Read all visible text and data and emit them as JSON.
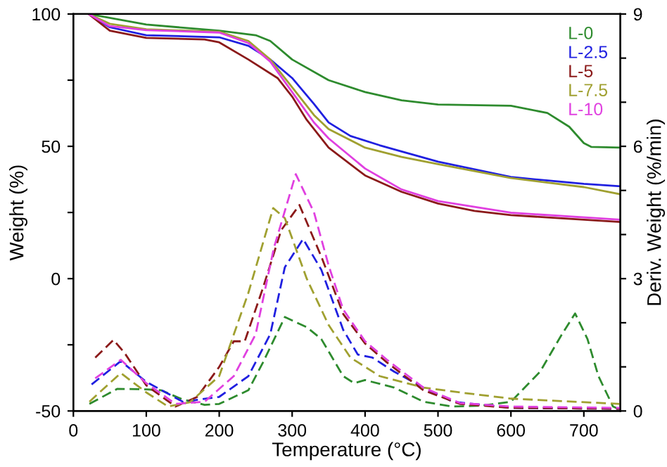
{
  "chart_data": {
    "type": "line",
    "xlabel": "Temperature (°C)",
    "ylabel": "Weight (%)",
    "y2label": "Deriv. Weight (%/min)",
    "xlim": [
      0,
      750
    ],
    "xticks": [
      0,
      100,
      200,
      300,
      400,
      500,
      600,
      700
    ],
    "ylim": [
      -50,
      100
    ],
    "yticks": [
      -50,
      {
        "value": -25,
        "label": null
      },
      0,
      {
        "value": 25,
        "label": null
      },
      50,
      {
        "value": 75,
        "label": null
      },
      100
    ],
    "y2lim": [
      0,
      9
    ],
    "y2ticks": [
      0,
      {
        "value": 1,
        "label": null
      },
      {
        "value": 2,
        "label": null
      },
      3,
      {
        "value": 4,
        "label": null
      },
      {
        "value": 5,
        "label": null
      },
      6,
      {
        "value": 7,
        "label": null
      },
      {
        "value": 8,
        "label": null
      },
      9
    ],
    "legend": "top right",
    "grid": false,
    "series": [
      {
        "name": "L-0",
        "color": "#2e8b2e",
        "line_style": "solid",
        "x": [
          21,
          100,
          200,
          250,
          270,
          300,
          350,
          400,
          450,
          500,
          600,
          650,
          680,
          700,
          710,
          750
        ],
        "values": [
          100,
          96,
          93.7,
          92,
          89.8,
          82.8,
          75,
          70.5,
          67.4,
          65.8,
          65.3,
          62.6,
          57.4,
          51.2,
          49.8,
          49.5
        ]
      },
      {
        "name": "L-2.5",
        "color": "#2020e0",
        "line_style": "solid",
        "x": [
          21,
          50,
          100,
          200,
          240,
          270,
          300,
          330,
          350,
          380,
          420,
          500,
          600,
          700,
          750
        ],
        "values": [
          100,
          95,
          92,
          91.2,
          88,
          82.8,
          75.8,
          66,
          59,
          53.9,
          50.4,
          44.2,
          38.4,
          35.8,
          34.9
        ]
      },
      {
        "name": "L-5",
        "color": "#8b1a1a",
        "line_style": "solid",
        "x": [
          21,
          50,
          100,
          180,
          200,
          240,
          280,
          300,
          320,
          350,
          400,
          450,
          500,
          550,
          600,
          750
        ],
        "values": [
          100,
          93.7,
          91,
          90.4,
          89.3,
          82.8,
          75.8,
          68.8,
          60,
          49.5,
          39,
          32.8,
          28.4,
          25.6,
          24,
          21.4
        ]
      },
      {
        "name": "L-7.5",
        "color": "#a0a030",
        "line_style": "solid",
        "x": [
          21,
          50,
          100,
          200,
          240,
          270,
          300,
          330,
          350,
          400,
          450,
          500,
          600,
          700,
          750
        ],
        "values": [
          100,
          96.3,
          94.2,
          93.3,
          89.8,
          82.8,
          72.3,
          61.8,
          56.5,
          49.5,
          46,
          43.3,
          38,
          34.6,
          31.9
        ]
      },
      {
        "name": "L-10",
        "color": "#e040e0",
        "line_style": "solid",
        "x": [
          21,
          50,
          100,
          200,
          240,
          270,
          300,
          330,
          350,
          400,
          450,
          500,
          600,
          750
        ],
        "values": [
          100,
          95.4,
          93.9,
          93,
          89,
          82,
          70.5,
          59,
          53,
          41.6,
          33.7,
          29.3,
          24.9,
          22.3
        ]
      },
      {
        "color": "#2e8b2e",
        "line_style": "dashed",
        "axis": "y2",
        "x": [
          22,
          60,
          100,
          120,
          150,
          180,
          200,
          240,
          260,
          290,
          320,
          340,
          370,
          385,
          400,
          440,
          480,
          520,
          560,
          600,
          640,
          670,
          688,
          705,
          720,
          740,
          750
        ],
        "values": [
          0.16,
          0.5,
          0.49,
          0.47,
          0.26,
          0.14,
          0.16,
          0.47,
          1.1,
          2.13,
          1.9,
          1.63,
          0.79,
          0.63,
          0.7,
          0.53,
          0.21,
          0.1,
          0.12,
          0.21,
          0.89,
          1.74,
          2.21,
          1.63,
          0.79,
          0.1,
          0.03
        ]
      },
      {
        "color": "#2020e0",
        "line_style": "dashed",
        "axis": "y2",
        "x": [
          25,
          65,
          100,
          150,
          200,
          240,
          270,
          290,
          315,
          340,
          370,
          390,
          410,
          440,
          480,
          520,
          600,
          750
        ],
        "values": [
          0.6,
          1.13,
          0.66,
          0.21,
          0.32,
          0.79,
          1.74,
          3.26,
          3.9,
          3.2,
          1.84,
          1.28,
          1.21,
          0.89,
          0.53,
          0.21,
          0.07,
          0.05
        ]
      },
      {
        "color": "#8b1a1a",
        "line_style": "dashed",
        "axis": "y2",
        "x": [
          30,
          55,
          70,
          100,
          140,
          170,
          200,
          220,
          235,
          260,
          285,
          310,
          340,
          370,
          400,
          430,
          480,
          530,
          600,
          750
        ],
        "values": [
          1.21,
          1.61,
          1.32,
          0.58,
          0.1,
          0.32,
          1.0,
          1.58,
          1.58,
          2.79,
          4.1,
          4.67,
          3.5,
          2.2,
          1.53,
          1.1,
          0.47,
          0.16,
          0.07,
          0.05
        ]
      },
      {
        "color": "#a0a030",
        "line_style": "dashed",
        "axis": "y2",
        "x": [
          22,
          65,
          100,
          130,
          160,
          200,
          240,
          274,
          290,
          320,
          350,
          380,
          420,
          480,
          530,
          600,
          750
        ],
        "values": [
          0.21,
          0.86,
          0.42,
          0.1,
          0.2,
          0.79,
          2.68,
          4.6,
          4.37,
          3.0,
          1.95,
          1.21,
          0.79,
          0.53,
          0.42,
          0.28,
          0.16
        ]
      },
      {
        "color": "#e040e0",
        "line_style": "dashed",
        "axis": "y2",
        "x": [
          30,
          65,
          100,
          140,
          180,
          220,
          250,
          275,
          305,
          330,
          350,
          370,
          400,
          430,
          480,
          530,
          600,
          750
        ],
        "values": [
          0.74,
          1.16,
          0.63,
          0.16,
          0.21,
          0.79,
          1.74,
          3.7,
          5.37,
          4.5,
          3.3,
          2.3,
          1.58,
          1.16,
          0.53,
          0.18,
          0.1,
          0.07
        ]
      }
    ]
  }
}
